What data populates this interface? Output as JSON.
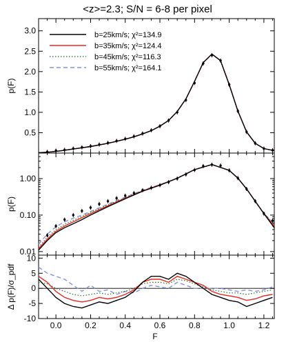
{
  "chart_data": {
    "type": "line",
    "title": "<z>=2.3; S/N = 6-8 per pixel",
    "xlabel": "F",
    "x_ticks": [
      "0.0",
      "0.2",
      "0.4",
      "0.6",
      "0.8",
      "1.0",
      "1.2"
    ],
    "xlim": [
      -0.1,
      1.26
    ],
    "colors": {
      "b25": "#000000",
      "b35": "#e8261c",
      "b45": "#1e6b1e",
      "b55": "#7f92e0",
      "data": "#000000"
    },
    "legend": {
      "placement": "top-left",
      "entries": [
        {
          "key": "b25",
          "label": "b=25km/s; χ²=134.9",
          "style": "solid"
        },
        {
          "key": "b35",
          "label": "b=35km/s; χ²=124.4",
          "style": "solid"
        },
        {
          "key": "b45",
          "label": "b=45km/s; χ²=116.3",
          "style": "dotted"
        },
        {
          "key": "b55",
          "label": "b=55km/s; χ²=164.1",
          "style": "dashed"
        }
      ]
    },
    "panels": {
      "top": {
        "ylabel": "p(F)",
        "scale": "linear",
        "ylim": [
          0,
          3.3
        ],
        "y_ticks": [
          "0.5",
          "1.0",
          "1.5",
          "2.0",
          "2.5",
          "3.0"
        ],
        "data_points": {
          "x": [
            -0.05,
            0.0,
            0.05,
            0.1,
            0.15,
            0.2,
            0.25,
            0.3,
            0.35,
            0.4,
            0.45,
            0.5,
            0.55,
            0.6,
            0.65,
            0.7,
            0.75,
            0.8,
            0.85,
            0.9,
            0.95,
            1.0,
            1.05,
            1.1,
            1.15,
            1.2,
            1.25
          ],
          "y": [
            0.03,
            0.06,
            0.08,
            0.11,
            0.14,
            0.17,
            0.21,
            0.25,
            0.3,
            0.35,
            0.41,
            0.48,
            0.56,
            0.66,
            0.8,
            1.0,
            1.3,
            1.72,
            2.2,
            2.4,
            2.27,
            1.68,
            1.03,
            0.52,
            0.24,
            0.11,
            0.07
          ]
        },
        "model": {
          "x": [
            -0.1,
            -0.05,
            0.0,
            0.05,
            0.1,
            0.15,
            0.2,
            0.25,
            0.3,
            0.35,
            0.4,
            0.45,
            0.5,
            0.55,
            0.6,
            0.65,
            0.7,
            0.75,
            0.8,
            0.85,
            0.9,
            0.95,
            1.0,
            1.05,
            1.1,
            1.15,
            1.2,
            1.26
          ],
          "y": [
            0.008,
            0.02,
            0.04,
            0.07,
            0.1,
            0.13,
            0.16,
            0.2,
            0.24,
            0.29,
            0.34,
            0.4,
            0.47,
            0.55,
            0.66,
            0.8,
            1.02,
            1.33,
            1.76,
            2.22,
            2.43,
            2.27,
            1.68,
            1.03,
            0.52,
            0.24,
            0.11,
            0.06
          ]
        }
      },
      "middle": {
        "ylabel": "p(F)",
        "scale": "log",
        "ylim": [
          0.008,
          5
        ],
        "y_ticks": [
          "0.01",
          "0.10",
          "1.00"
        ],
        "data_points": {
          "x": [
            -0.05,
            0.0,
            0.05,
            0.1,
            0.15,
            0.2,
            0.25,
            0.3,
            0.35,
            0.4,
            0.45,
            0.5,
            0.55,
            0.6,
            0.65,
            0.7,
            0.75,
            0.8,
            0.85,
            0.9,
            0.95,
            1.0,
            1.05,
            1.1,
            1.15,
            1.2,
            1.25
          ],
          "y": [
            0.028,
            0.05,
            0.075,
            0.1,
            0.13,
            0.16,
            0.2,
            0.24,
            0.29,
            0.34,
            0.4,
            0.48,
            0.56,
            0.66,
            0.8,
            1.0,
            1.3,
            1.72,
            2.2,
            2.4,
            2.27,
            1.68,
            1.03,
            0.52,
            0.24,
            0.11,
            0.07
          ]
        },
        "series": [
          {
            "key": "b25",
            "x": [
              -0.1,
              -0.05,
              0.0,
              0.05,
              0.1,
              0.15,
              0.2,
              0.3,
              0.4,
              0.5,
              0.6,
              0.7,
              0.8,
              0.9,
              1.0,
              1.05,
              1.1,
              1.15,
              1.2,
              1.26
            ],
            "y": [
              0.011,
              0.02,
              0.033,
              0.045,
              0.058,
              0.075,
              0.1,
              0.17,
              0.28,
              0.45,
              0.66,
              1.02,
              1.76,
              2.43,
              1.68,
              1.03,
              0.52,
              0.24,
              0.11,
              0.045
            ]
          },
          {
            "key": "b35",
            "x": [
              -0.1,
              -0.05,
              0.0,
              0.05,
              0.1,
              0.15,
              0.2,
              0.3,
              0.4,
              0.5,
              0.6,
              0.7,
              0.8,
              0.9,
              1.0,
              1.05,
              1.1,
              1.15,
              1.2,
              1.26
            ],
            "y": [
              0.012,
              0.022,
              0.036,
              0.05,
              0.065,
              0.085,
              0.11,
              0.18,
              0.29,
              0.46,
              0.67,
              1.02,
              1.76,
              2.43,
              1.68,
              1.03,
              0.52,
              0.24,
              0.11,
              0.05
            ]
          },
          {
            "key": "b45",
            "x": [
              -0.1,
              -0.05,
              0.0,
              0.05,
              0.1,
              0.15,
              0.2,
              0.3,
              0.4,
              0.5,
              0.6,
              0.7,
              0.8,
              0.9,
              1.0,
              1.05,
              1.1,
              1.15,
              1.2,
              1.26
            ],
            "y": [
              0.013,
              0.025,
              0.04,
              0.056,
              0.072,
              0.092,
              0.12,
              0.19,
              0.3,
              0.47,
              0.67,
              1.02,
              1.76,
              2.43,
              1.68,
              1.03,
              0.52,
              0.24,
              0.11,
              0.055
            ]
          },
          {
            "key": "b55",
            "x": [
              -0.1,
              -0.05,
              0.0,
              0.05,
              0.1,
              0.15,
              0.2,
              0.3,
              0.4,
              0.5,
              0.6,
              0.7,
              0.8,
              0.9,
              1.0,
              1.05,
              1.1,
              1.15,
              1.2,
              1.26
            ],
            "y": [
              0.016,
              0.03,
              0.048,
              0.065,
              0.082,
              0.1,
              0.125,
              0.2,
              0.31,
              0.48,
              0.68,
              1.03,
              1.76,
              2.43,
              1.68,
              1.03,
              0.52,
              0.24,
              0.11,
              0.06
            ]
          }
        ]
      },
      "bottom": {
        "ylabel": "Δ p(F)/σ_pdf",
        "scale": "linear",
        "ylim": [
          -10,
          11
        ],
        "y_ticks": [
          "-10",
          "-5",
          "0",
          "5",
          "10"
        ],
        "series": [
          {
            "key": "b25",
            "x": [
              -0.1,
              -0.05,
              0.0,
              0.05,
              0.1,
              0.15,
              0.2,
              0.25,
              0.3,
              0.35,
              0.4,
              0.45,
              0.5,
              0.55,
              0.6,
              0.65,
              0.7,
              0.75,
              0.8,
              0.85,
              0.9,
              0.95,
              1.0,
              1.05,
              1.1,
              1.15,
              1.2,
              1.25
            ],
            "y": [
              3,
              0,
              -3,
              -5,
              -6,
              -6.5,
              -5.5,
              -4.5,
              -5,
              -4,
              -3,
              -1,
              2,
              4,
              4,
              3,
              5,
              4,
              2,
              0,
              -2,
              -3,
              -4,
              -4.5,
              -6,
              -5,
              -4,
              -3
            ]
          },
          {
            "key": "b35",
            "x": [
              -0.1,
              -0.05,
              0.0,
              0.05,
              0.1,
              0.15,
              0.2,
              0.25,
              0.3,
              0.35,
              0.4,
              0.45,
              0.5,
              0.55,
              0.6,
              0.65,
              0.7,
              0.75,
              0.8,
              0.85,
              0.9,
              0.95,
              1.0,
              1.05,
              1.1,
              1.15,
              1.2,
              1.25
            ],
            "y": [
              4,
              2,
              -1,
              -3,
              -4,
              -4.5,
              -4,
              -3,
              -3.5,
              -3,
              -2,
              -0.5,
              2,
              3,
              3,
              2,
              4,
              3,
              2,
              1,
              -1,
              -2,
              -2.5,
              -3,
              -4,
              -3.5,
              -2.5,
              -2
            ]
          },
          {
            "key": "b45",
            "x": [
              -0.1,
              -0.05,
              0.0,
              0.05,
              0.1,
              0.15,
              0.2,
              0.25,
              0.3,
              0.35,
              0.4,
              0.45,
              0.5,
              0.55,
              0.6,
              0.65,
              0.7,
              0.75,
              0.8,
              0.85,
              0.9,
              0.95,
              1.0,
              1.05,
              1.1,
              1.15,
              1.2,
              1.25
            ],
            "y": [
              2,
              1.5,
              0,
              -1,
              -2,
              -2.5,
              -2,
              -1.5,
              -2,
              -1.5,
              -1,
              0,
              1.5,
              2,
              2,
              1.5,
              3,
              2.5,
              1.5,
              0.5,
              -0.5,
              -1,
              -1.5,
              -1.5,
              -2,
              -1.5,
              -1,
              -0.5
            ]
          },
          {
            "key": "b55",
            "x": [
              -0.1,
              -0.05,
              0.0,
              0.05,
              0.1,
              0.15,
              0.2,
              0.25,
              0.3,
              0.35,
              0.4,
              0.45,
              0.5,
              0.55,
              0.6,
              0.65,
              0.7,
              0.75,
              0.8,
              0.85,
              0.9,
              0.95,
              1.0,
              1.05,
              1.1,
              1.15,
              1.2,
              1.25
            ],
            "y": [
              7,
              5,
              4,
              3,
              1,
              -1,
              1,
              -1,
              -0.5,
              -2,
              -1,
              -1.5,
              0,
              1,
              0.5,
              0,
              2,
              1,
              0,
              0,
              0,
              0,
              -0.5,
              -1,
              -0.5,
              -1,
              -0.5,
              0.5
            ]
          }
        ]
      }
    }
  }
}
